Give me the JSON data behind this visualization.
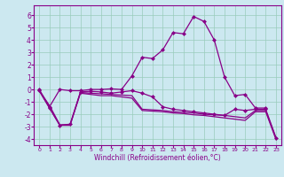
{
  "xlabel": "Windchill (Refroidissement éolien,°C)",
  "bg_color": "#cce8f0",
  "line_color": "#880088",
  "grid_color": "#99ccbb",
  "xlim": [
    -0.5,
    23.5
  ],
  "ylim": [
    -4.5,
    6.8
  ],
  "yticks": [
    -4,
    -3,
    -2,
    -1,
    0,
    1,
    2,
    3,
    4,
    5,
    6
  ],
  "xticks": [
    0,
    1,
    2,
    3,
    4,
    5,
    6,
    7,
    8,
    9,
    10,
    11,
    12,
    13,
    14,
    15,
    16,
    17,
    18,
    19,
    20,
    21,
    22,
    23
  ],
  "series": [
    [
      0.0,
      -1.4,
      0.0,
      -0.1,
      -0.1,
      0.0,
      0.0,
      0.05,
      0.0,
      1.1,
      2.6,
      2.5,
      3.2,
      4.6,
      4.5,
      5.9,
      5.5,
      4.0,
      1.0,
      -0.5,
      -0.4,
      -1.5,
      -1.5,
      null
    ],
    [
      -0.1,
      -1.5,
      -2.9,
      -2.8,
      -0.2,
      -0.15,
      -0.2,
      -0.3,
      -0.2,
      -0.1,
      -0.3,
      -0.6,
      -1.4,
      -1.6,
      -1.7,
      -1.8,
      -1.9,
      -2.0,
      -2.1,
      -1.6,
      -1.7,
      -1.6,
      -1.6,
      -3.9
    ],
    [
      -0.1,
      -1.5,
      -2.9,
      -2.9,
      -0.25,
      -0.3,
      -0.35,
      -0.4,
      -0.45,
      -0.5,
      -1.6,
      -1.65,
      -1.7,
      -1.8,
      -1.85,
      -1.9,
      -2.0,
      -2.05,
      -2.1,
      -2.2,
      -2.3,
      -1.7,
      -1.7,
      -3.95
    ],
    [
      -0.1,
      -1.3,
      -2.85,
      -2.85,
      -0.3,
      -0.4,
      -0.5,
      -0.5,
      -0.6,
      -0.7,
      -1.7,
      -1.75,
      -1.8,
      -1.9,
      -1.95,
      -2.05,
      -2.1,
      -2.2,
      -2.3,
      -2.4,
      -2.5,
      -1.8,
      -1.8,
      -4.05
    ]
  ],
  "has_markers": [
    true,
    true,
    false,
    false
  ]
}
